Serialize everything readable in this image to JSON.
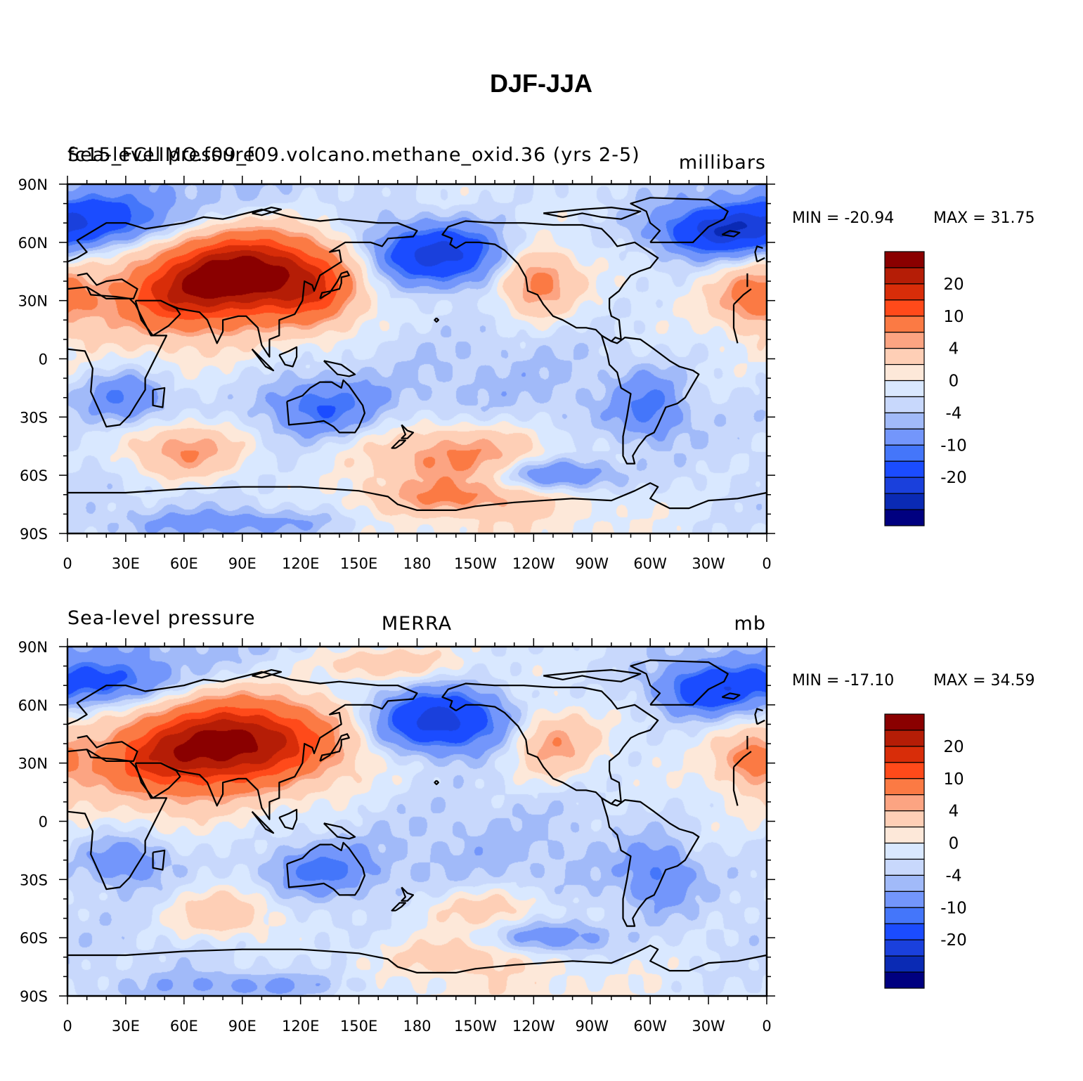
{
  "figure": {
    "title": "DJF-JJA"
  },
  "colors": [
    "#000080",
    "#0a2ab4",
    "#1a40dc",
    "#1b4cff",
    "#4476fa",
    "#7396fb",
    "#a1baf9",
    "#c8d8fc",
    "#d9e8ff",
    "#fde8d9",
    "#fecfb6",
    "#fca482",
    "#fb7a44",
    "#ff4a1a",
    "#d82d09",
    "#b51d06",
    "#8a0000"
  ],
  "land_color": "#000000",
  "chart_data": [
    {
      "type": "heatmap",
      "title": "fc15_FCLIMO.f09_f09.volcano.methane_oxid.36 (yrs 2-5)",
      "left_label": "Sea-level pressure",
      "center_label": "",
      "units": "millibars",
      "min_label": "MIN = -20.94",
      "max_label": "MAX =   31.75",
      "min": -20.94,
      "max": 31.75,
      "x_ticks": [
        "0",
        "30E",
        "60E",
        "90E",
        "120E",
        "150E",
        "180",
        "150W",
        "120W",
        "90W",
        "60W",
        "30W",
        "0"
      ],
      "y_ticks": [
        "90N",
        "60N",
        "30N",
        "0",
        "30S",
        "60S",
        "90S"
      ],
      "xlim": [
        0,
        360
      ],
      "ylim": [
        -90,
        90
      ],
      "colorbar_labels": [
        "20",
        "10",
        "4",
        "0",
        "-4",
        "-10",
        "-20"
      ],
      "features": [
        {
          "lon": 92,
          "lat": 45,
          "amp": 30,
          "sx": 32,
          "sy": 15
        },
        {
          "lon": 55,
          "lat": 30,
          "amp": 12,
          "sx": 26,
          "sy": 13
        },
        {
          "lon": 128,
          "lat": 32,
          "amp": 9,
          "sx": 15,
          "sy": 13
        },
        {
          "lon": 242,
          "lat": 40,
          "amp": 12,
          "sx": 14,
          "sy": 12
        },
        {
          "lon": 354,
          "lat": 32,
          "amp": 11,
          "sx": 14,
          "sy": 11
        },
        {
          "lon": 190,
          "lat": 54,
          "amp": -19,
          "sx": 25,
          "sy": 11
        },
        {
          "lon": 335,
          "lat": 66,
          "amp": -17,
          "sx": 22,
          "sy": 9
        },
        {
          "lon": 20,
          "lat": 72,
          "amp": -11,
          "sx": 25,
          "sy": 9
        },
        {
          "lon": 60,
          "lat": -48,
          "amp": 11,
          "sx": 22,
          "sy": 10
        },
        {
          "lon": 200,
          "lat": -50,
          "amp": 11,
          "sx": 35,
          "sy": 12
        },
        {
          "lon": 200,
          "lat": -72,
          "amp": 7,
          "sx": 30,
          "sy": 6
        },
        {
          "lon": 250,
          "lat": -60,
          "amp": -11,
          "sx": 22,
          "sy": 6
        },
        {
          "lon": 30,
          "lat": -20,
          "amp": -9,
          "sx": 15,
          "sy": 9
        },
        {
          "lon": 130,
          "lat": -25,
          "amp": -9,
          "sx": 20,
          "sy": 10
        },
        {
          "lon": 300,
          "lat": -25,
          "amp": -8,
          "sx": 12,
          "sy": 12
        },
        {
          "lon": 90,
          "lat": -85,
          "amp": -6,
          "sx": 40,
          "sy": 5
        }
      ]
    },
    {
      "type": "heatmap",
      "title": "",
      "left_label": "Sea-level pressure",
      "center_label": "MERRA",
      "units": "mb",
      "min_label": "MIN = -17.10",
      "max_label": "MAX =   34.59",
      "min": -17.1,
      "max": 34.59,
      "x_ticks": [
        "0",
        "30E",
        "60E",
        "90E",
        "120E",
        "150E",
        "180",
        "150W",
        "120W",
        "90W",
        "60W",
        "30W",
        "0"
      ],
      "y_ticks": [
        "90N",
        "60N",
        "30N",
        "0",
        "30S",
        "60S",
        "90S"
      ],
      "xlim": [
        0,
        360
      ],
      "ylim": [
        -90,
        90
      ],
      "colorbar_labels": [
        "20",
        "10",
        "4",
        "0",
        "-4",
        "-10",
        "-20"
      ],
      "features": [
        {
          "lon": 88,
          "lat": 42,
          "amp": 28,
          "sx": 35,
          "sy": 16
        },
        {
          "lon": 45,
          "lat": 30,
          "amp": 11,
          "sx": 25,
          "sy": 13
        },
        {
          "lon": 250,
          "lat": 40,
          "amp": 9,
          "sx": 15,
          "sy": 12
        },
        {
          "lon": 352,
          "lat": 32,
          "amp": 9,
          "sx": 12,
          "sy": 10
        },
        {
          "lon": 160,
          "lat": 82,
          "amp": 7,
          "sx": 25,
          "sy": 6
        },
        {
          "lon": 192,
          "lat": 52,
          "amp": -20,
          "sx": 24,
          "sy": 11
        },
        {
          "lon": 330,
          "lat": 68,
          "amp": -14,
          "sx": 18,
          "sy": 9
        },
        {
          "lon": 20,
          "lat": 72,
          "amp": -10,
          "sx": 22,
          "sy": 8
        },
        {
          "lon": 80,
          "lat": -48,
          "amp": 8,
          "sx": 20,
          "sy": 9
        },
        {
          "lon": 215,
          "lat": -45,
          "amp": 6,
          "sx": 25,
          "sy": 8
        },
        {
          "lon": 200,
          "lat": -70,
          "amp": 5,
          "sx": 20,
          "sy": 6
        },
        {
          "lon": 250,
          "lat": -60,
          "amp": -8,
          "sx": 20,
          "sy": 6
        },
        {
          "lon": 30,
          "lat": -20,
          "amp": -8,
          "sx": 15,
          "sy": 9
        },
        {
          "lon": 130,
          "lat": -25,
          "amp": -8,
          "sx": 18,
          "sy": 9
        },
        {
          "lon": 305,
          "lat": -28,
          "amp": -7,
          "sx": 12,
          "sy": 12
        },
        {
          "lon": 100,
          "lat": -85,
          "amp": -5,
          "sx": 40,
          "sy": 5
        }
      ]
    }
  ]
}
